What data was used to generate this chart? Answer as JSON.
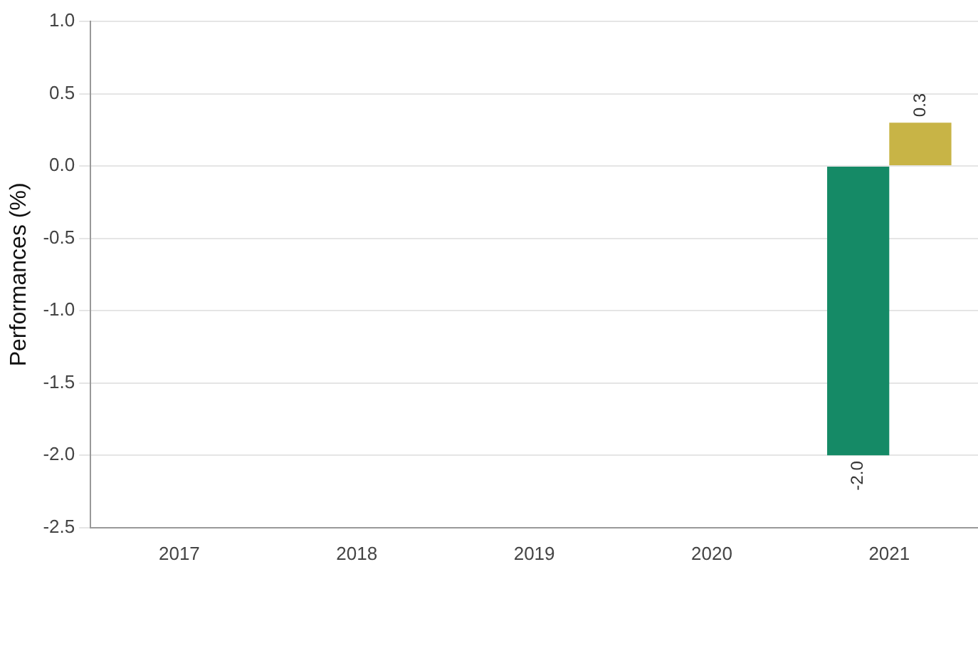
{
  "chart_data": {
    "type": "bar",
    "ylabel": "Performances (%)",
    "categories": [
      "2017",
      "2018",
      "2019",
      "2020",
      "2021"
    ],
    "series": [
      {
        "color": "#158a66",
        "values": [
          null,
          null,
          null,
          null,
          -2.0
        ],
        "value_labels": [
          null,
          null,
          null,
          null,
          "-2.0"
        ]
      },
      {
        "color": "#c8b446",
        "values": [
          null,
          null,
          null,
          null,
          0.3
        ],
        "value_labels": [
          null,
          null,
          null,
          null,
          "0.3"
        ]
      }
    ],
    "ylim": [
      -2.5,
      1.0
    ],
    "yticks": [
      {
        "value": -2.5,
        "label": "-2.5"
      },
      {
        "value": -2,
        "label": "-2.0"
      },
      {
        "value": -1.5,
        "label": "-1.5"
      },
      {
        "value": -1,
        "label": "-1.0"
      },
      {
        "value": -0.5,
        "label": "-0.5"
      },
      {
        "value": 0,
        "label": "0.0"
      },
      {
        "value": 0.5,
        "label": "0.5"
      },
      {
        "value": 1,
        "label": "1.0"
      }
    ],
    "grid": "y"
  }
}
